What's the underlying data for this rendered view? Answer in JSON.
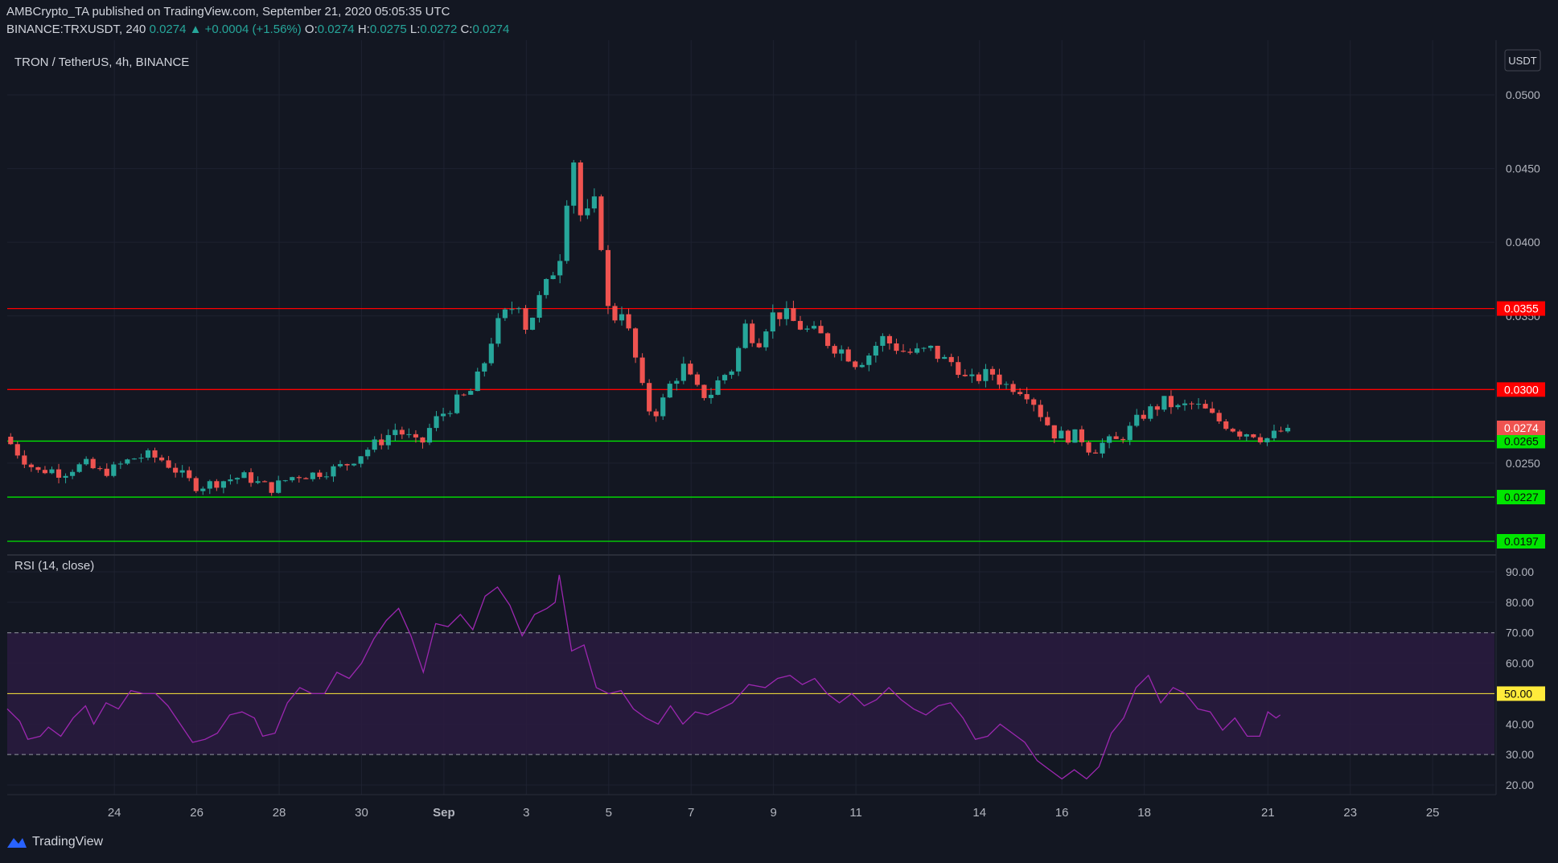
{
  "header": {
    "publisher": "AMBCrypto_TA",
    "published_text": "published on TradingView.com, September 21, 2020 05:05:35 UTC",
    "symbol": "BINANCE:TRXUSDT, 240",
    "last": "0.0274",
    "change": "+0.0004 (+1.56%)",
    "o_label": "O:",
    "o_value": "0.0274",
    "h_label": "H:",
    "h_value": "0.0275",
    "l_label": "L:",
    "l_value": "0.0272",
    "c_label": "C:",
    "c_value": "0.0274"
  },
  "colors": {
    "background": "#131722",
    "up": "#26a69a",
    "down": "#ef5350",
    "resistance": "#ff0000",
    "support": "#00e600",
    "rsi_line": "#9c27b0",
    "rsi_band": "#2a1b40",
    "rsi_mid": "#ffeb3b"
  },
  "footer": {
    "brand": "TradingView",
    "logo_icon": "tradingview-logo-icon"
  },
  "chart_data": [
    {
      "type": "candlestick",
      "title": "TRON / TetherUS, 4h, BINANCE",
      "currency_label": "USDT",
      "ylim": [
        0.019,
        0.051
      ],
      "y_ticks": [
        "0.0500",
        "0.0450",
        "0.0400",
        "0.0350",
        "0.0250"
      ],
      "x_ticks": [
        {
          "label": "24",
          "day": 24
        },
        {
          "label": "26",
          "day": 26
        },
        {
          "label": "28",
          "day": 28
        },
        {
          "label": "30",
          "day": 30
        },
        {
          "label": "Sep",
          "day": 32
        },
        {
          "label": "3",
          "day": 34
        },
        {
          "label": "5",
          "day": 36
        },
        {
          "label": "7",
          "day": 38
        },
        {
          "label": "9",
          "day": 40
        },
        {
          "label": "11",
          "day": 42
        },
        {
          "label": "14",
          "day": 45
        },
        {
          "label": "16",
          "day": 47
        },
        {
          "label": "18",
          "day": 49
        },
        {
          "label": "21",
          "day": 52
        },
        {
          "label": "23",
          "day": 54
        },
        {
          "label": "25",
          "day": 56
        }
      ],
      "x_range_days": [
        21.4,
        57.5
      ],
      "horizontal_levels": [
        {
          "value": 0.0355,
          "label": "0.0355",
          "kind": "resistance"
        },
        {
          "value": 0.03,
          "label": "0.0300",
          "kind": "resistance"
        },
        {
          "value": 0.0265,
          "label": "0.0265",
          "kind": "support"
        },
        {
          "value": 0.0227,
          "label": "0.0227",
          "kind": "support"
        },
        {
          "value": 0.0197,
          "label": "0.0197",
          "kind": "support"
        }
      ],
      "last_price": {
        "value": 0.0274,
        "label": "0.0274"
      },
      "candles_interval": "4h",
      "candles_first_day": 21.4,
      "price_path": [
        [
          21.4,
          0.0268
        ],
        [
          21.6,
          0.0262
        ],
        [
          21.8,
          0.0255
        ],
        [
          22.0,
          0.025
        ],
        [
          22.2,
          0.0244
        ],
        [
          22.5,
          0.0246
        ],
        [
          22.8,
          0.0243
        ],
        [
          23.1,
          0.0247
        ],
        [
          23.4,
          0.0249
        ],
        [
          23.7,
          0.0244
        ],
        [
          24.0,
          0.0245
        ],
        [
          24.3,
          0.025
        ],
        [
          24.6,
          0.0254
        ],
        [
          24.9,
          0.0255
        ],
        [
          25.2,
          0.0253
        ],
        [
          25.5,
          0.0247
        ],
        [
          25.8,
          0.024
        ],
        [
          26.1,
          0.0234
        ],
        [
          26.4,
          0.0236
        ],
        [
          26.7,
          0.0238
        ],
        [
          27.0,
          0.024
        ],
        [
          27.3,
          0.0241
        ],
        [
          27.6,
          0.0236
        ],
        [
          27.9,
          0.0233
        ],
        [
          28.2,
          0.0238
        ],
        [
          28.5,
          0.0242
        ],
        [
          28.8,
          0.0242
        ],
        [
          29.1,
          0.0244
        ],
        [
          29.4,
          0.0246
        ],
        [
          29.7,
          0.0249
        ],
        [
          30.0,
          0.0255
        ],
        [
          30.3,
          0.0261
        ],
        [
          30.6,
          0.0266
        ],
        [
          30.9,
          0.0273
        ],
        [
          31.2,
          0.0268
        ],
        [
          31.5,
          0.0261
        ],
        [
          31.8,
          0.0277
        ],
        [
          32.1,
          0.0285
        ],
        [
          32.4,
          0.0292
        ],
        [
          32.7,
          0.0297
        ],
        [
          33.0,
          0.0313
        ],
        [
          33.3,
          0.034
        ],
        [
          33.6,
          0.0352
        ],
        [
          33.9,
          0.036
        ],
        [
          34.1,
          0.034
        ],
        [
          34.3,
          0.0356
        ],
        [
          34.6,
          0.0372
        ],
        [
          34.9,
          0.0392
        ],
        [
          35.0,
          0.0415
        ],
        [
          35.2,
          0.0464
        ],
        [
          35.45,
          0.0407
        ],
        [
          35.7,
          0.043
        ],
        [
          35.9,
          0.04
        ],
        [
          36.1,
          0.0345
        ],
        [
          36.4,
          0.0355
        ],
        [
          36.7,
          0.0325
        ],
        [
          36.9,
          0.03
        ],
        [
          37.1,
          0.0284
        ],
        [
          37.3,
          0.0286
        ],
        [
          37.6,
          0.0305
        ],
        [
          37.9,
          0.0315
        ],
        [
          38.2,
          0.03
        ],
        [
          38.5,
          0.0295
        ],
        [
          38.8,
          0.0308
        ],
        [
          39.1,
          0.0315
        ],
        [
          39.4,
          0.0343
        ],
        [
          39.7,
          0.0332
        ],
        [
          40.0,
          0.035
        ],
        [
          40.3,
          0.0352
        ],
        [
          40.6,
          0.0345
        ],
        [
          40.9,
          0.034
        ],
        [
          41.2,
          0.0337
        ],
        [
          41.5,
          0.033
        ],
        [
          41.8,
          0.0326
        ],
        [
          42.1,
          0.0318
        ],
        [
          42.4,
          0.0324
        ],
        [
          42.7,
          0.0335
        ],
        [
          43.0,
          0.033
        ],
        [
          43.3,
          0.0325
        ],
        [
          43.6,
          0.0325
        ],
        [
          43.9,
          0.0327
        ],
        [
          44.2,
          0.032
        ],
        [
          44.5,
          0.0318
        ],
        [
          44.8,
          0.0304
        ],
        [
          45.1,
          0.0309
        ],
        [
          45.4,
          0.0311
        ],
        [
          45.7,
          0.0303
        ],
        [
          46.0,
          0.0302
        ],
        [
          46.3,
          0.0297
        ],
        [
          46.6,
          0.0282
        ],
        [
          46.9,
          0.027
        ],
        [
          47.2,
          0.0268
        ],
        [
          47.5,
          0.0269
        ],
        [
          47.8,
          0.0258
        ],
        [
          48.1,
          0.0264
        ],
        [
          48.4,
          0.0265
        ],
        [
          48.7,
          0.0272
        ],
        [
          49.0,
          0.0282
        ],
        [
          49.3,
          0.0287
        ],
        [
          49.6,
          0.0292
        ],
        [
          49.9,
          0.0287
        ],
        [
          50.2,
          0.029
        ],
        [
          50.5,
          0.0287
        ],
        [
          50.8,
          0.028
        ],
        [
          51.1,
          0.0276
        ],
        [
          51.4,
          0.0271
        ],
        [
          51.7,
          0.0271
        ],
        [
          52.0,
          0.0266
        ],
        [
          52.3,
          0.027
        ],
        [
          52.55,
          0.0274
        ]
      ]
    },
    {
      "type": "line",
      "title": "RSI (14, close)",
      "ylim": [
        15,
        93
      ],
      "y_ticks": [
        "90.00",
        "80.00",
        "70.00",
        "60.00",
        "40.00",
        "30.00",
        "20.00"
      ],
      "band": [
        30,
        70
      ],
      "midline": {
        "value": 50,
        "label": "50.00"
      },
      "points": [
        [
          21.4,
          45
        ],
        [
          21.7,
          41
        ],
        [
          21.9,
          35
        ],
        [
          22.2,
          36
        ],
        [
          22.4,
          39
        ],
        [
          22.7,
          36
        ],
        [
          23.0,
          42
        ],
        [
          23.3,
          46
        ],
        [
          23.5,
          40
        ],
        [
          23.8,
          47
        ],
        [
          24.1,
          45
        ],
        [
          24.4,
          51
        ],
        [
          24.7,
          50
        ],
        [
          25.0,
          50
        ],
        [
          25.3,
          46
        ],
        [
          25.6,
          40
        ],
        [
          25.9,
          34
        ],
        [
          26.2,
          35
        ],
        [
          26.5,
          37
        ],
        [
          26.8,
          43
        ],
        [
          27.1,
          44
        ],
        [
          27.4,
          42
        ],
        [
          27.6,
          36
        ],
        [
          27.9,
          37
        ],
        [
          28.2,
          47
        ],
        [
          28.5,
          52
        ],
        [
          28.8,
          50
        ],
        [
          29.1,
          50
        ],
        [
          29.4,
          57
        ],
        [
          29.7,
          55
        ],
        [
          30.0,
          60
        ],
        [
          30.3,
          68
        ],
        [
          30.6,
          74
        ],
        [
          30.9,
          78
        ],
        [
          31.2,
          69
        ],
        [
          31.5,
          57
        ],
        [
          31.8,
          73
        ],
        [
          32.1,
          72
        ],
        [
          32.4,
          76
        ],
        [
          32.7,
          71
        ],
        [
          33.0,
          82
        ],
        [
          33.3,
          85
        ],
        [
          33.6,
          79
        ],
        [
          33.9,
          69
        ],
        [
          34.2,
          76
        ],
        [
          34.5,
          78
        ],
        [
          34.7,
          80
        ],
        [
          34.8,
          89
        ],
        [
          35.1,
          64
        ],
        [
          35.4,
          66
        ],
        [
          35.7,
          52
        ],
        [
          36.0,
          50
        ],
        [
          36.3,
          51
        ],
        [
          36.6,
          45
        ],
        [
          36.9,
          42
        ],
        [
          37.2,
          40
        ],
        [
          37.5,
          46
        ],
        [
          37.8,
          40
        ],
        [
          38.1,
          44
        ],
        [
          38.4,
          43
        ],
        [
          38.7,
          45
        ],
        [
          39.0,
          47
        ],
        [
          39.4,
          53
        ],
        [
          39.8,
          52
        ],
        [
          40.1,
          55
        ],
        [
          40.4,
          56
        ],
        [
          40.7,
          53
        ],
        [
          41.0,
          55
        ],
        [
          41.3,
          50
        ],
        [
          41.6,
          47
        ],
        [
          41.9,
          50
        ],
        [
          42.2,
          46
        ],
        [
          42.5,
          48
        ],
        [
          42.8,
          52
        ],
        [
          43.1,
          48
        ],
        [
          43.4,
          45
        ],
        [
          43.7,
          43
        ],
        [
          44.0,
          46
        ],
        [
          44.3,
          47
        ],
        [
          44.6,
          42
        ],
        [
          44.9,
          35
        ],
        [
          45.2,
          36
        ],
        [
          45.5,
          40
        ],
        [
          45.8,
          37
        ],
        [
          46.1,
          34
        ],
        [
          46.4,
          28
        ],
        [
          46.7,
          25
        ],
        [
          47.0,
          22
        ],
        [
          47.3,
          25
        ],
        [
          47.6,
          22
        ],
        [
          47.9,
          26
        ],
        [
          48.2,
          37
        ],
        [
          48.5,
          42
        ],
        [
          48.8,
          52
        ],
        [
          49.1,
          56
        ],
        [
          49.4,
          47
        ],
        [
          49.7,
          52
        ],
        [
          50.0,
          50
        ],
        [
          50.3,
          45
        ],
        [
          50.6,
          44
        ],
        [
          50.9,
          38
        ],
        [
          51.2,
          42
        ],
        [
          51.5,
          36
        ],
        [
          51.8,
          36
        ],
        [
          52.0,
          44
        ],
        [
          52.2,
          42
        ],
        [
          52.3,
          43
        ]
      ]
    }
  ]
}
